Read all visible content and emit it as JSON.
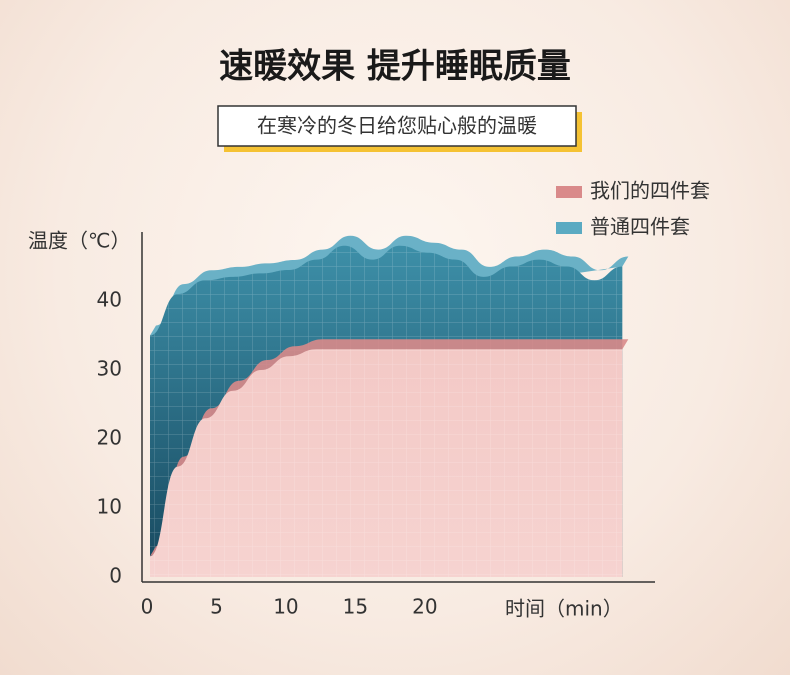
{
  "chart_data": {
    "type": "area",
    "title": "速暖效果 提升睡眠质量",
    "subtitle": "在寒冷的冬日给您贴心般的温暖",
    "y_label": "温度（℃）",
    "x_label": "时间（min）",
    "x": [
      0,
      2,
      4,
      6,
      8,
      10,
      12,
      14,
      16,
      18,
      20,
      22,
      24,
      26,
      28,
      30,
      32,
      34
    ],
    "series": [
      {
        "name": "我们的四件套",
        "color": "#d98a8a",
        "values": [
          3,
          16,
          23,
          27,
          30,
          32,
          33,
          33,
          33,
          33,
          33,
          33,
          33,
          33,
          33,
          33,
          33,
          33
        ]
      },
      {
        "name": "普通四件套",
        "color": "#5aaac2",
        "values": [
          35,
          41,
          43,
          43.5,
          44,
          44.5,
          46,
          48,
          46,
          48,
          47,
          46,
          43.5,
          45,
          46,
          45,
          43,
          45
        ]
      }
    ],
    "xlim": [
      0,
      37
    ],
    "ylim": [
      0,
      50
    ],
    "xticks": [
      0,
      5,
      10,
      15,
      20
    ],
    "yticks": [
      0,
      10,
      20,
      30,
      40
    ],
    "legend": "top-right"
  }
}
